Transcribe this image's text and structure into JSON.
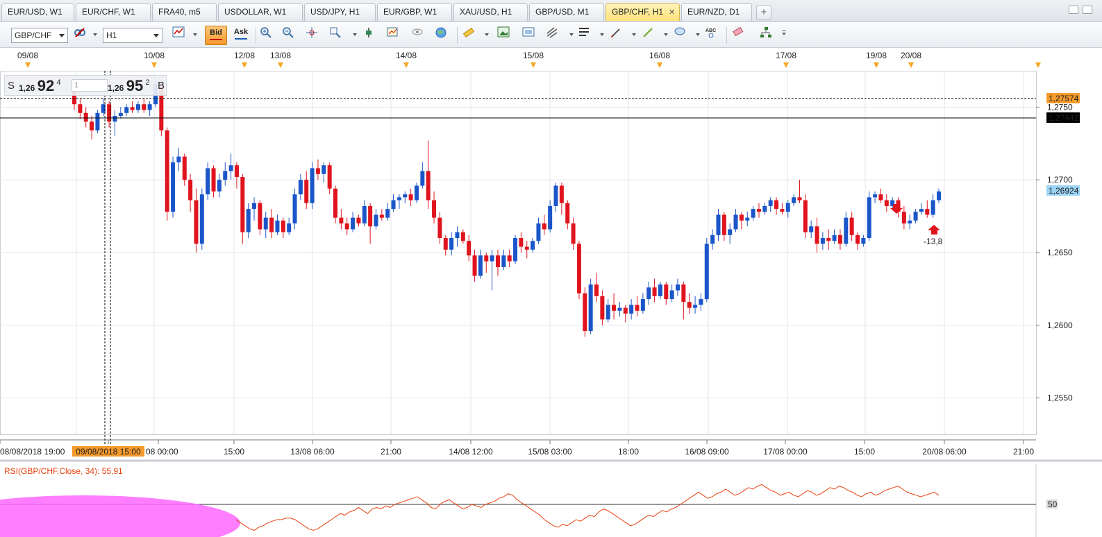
{
  "tabs": [
    {
      "label": "EUR/USD, W1",
      "active": false
    },
    {
      "label": "EUR/CHF, W1",
      "active": false
    },
    {
      "label": "FRA40, m5",
      "active": false
    },
    {
      "label": "USDOLLAR, W1",
      "active": false
    },
    {
      "label": "USD/JPY, H1",
      "active": false
    },
    {
      "label": "EUR/GBP, W1",
      "active": false
    },
    {
      "label": "XAU/USD, H1",
      "active": false
    },
    {
      "label": "GBP/USD, M1",
      "active": false
    },
    {
      "label": "GBP/CHF, H1",
      "active": true
    },
    {
      "label": "EUR/NZD, D1",
      "active": false
    }
  ],
  "toolbar": {
    "symbol": "GBP/CHF",
    "timeframe": "H1",
    "bid_label": "Bid",
    "ask_label": "Ask",
    "icons": [
      "chart-link-icon",
      "chart-type-icon",
      "zoom-in-icon",
      "zoom-out-icon",
      "crosshair-icon",
      "magnify-icon",
      "data-marker-icon",
      "indicator-icon",
      "eye-icon",
      "globe-icon",
      "ruler-icon",
      "image-icon",
      "screenshot-icon",
      "trendline-icon",
      "horizontal-lines-icon",
      "pen-icon",
      "line-draw-icon",
      "ellipse-icon",
      "text-tool-icon",
      "eraser-icon",
      "hierarchy-icon"
    ]
  },
  "trade_panel": {
    "sell_label": "S",
    "sell_small": "1,26",
    "sell_big": "92",
    "sell_sup": "4",
    "quantity": "1",
    "buy_small": "1,26",
    "buy_big": "95",
    "buy_sup": "2",
    "buy_label": "B"
  },
  "top_axis_dates": [
    "09/08",
    "10/08",
    "12/08",
    "13/08",
    "14/08",
    "15/08",
    "16/08",
    "17/08",
    "19/08",
    "20/08"
  ],
  "bottom_axis_labels": [
    "08/08/2018 19:00",
    "09/08/2018 15:00",
    "08 00:00",
    "15:00",
    "13/08 06:00",
    "21:00",
    "14/08 12:00",
    "15/08 03:00",
    "18:00",
    "16/08 09:00",
    "17/08 00:00",
    "15:00",
    "20/08 06:00",
    "21:00"
  ],
  "price_levels": [
    "1,2750",
    "1,2700",
    "1,2650",
    "1,2600",
    "1,2550"
  ],
  "price_tags": {
    "dashed_line": "1,27574",
    "solid_line": "1,27442",
    "current": "1,26924"
  },
  "annotation": "-13,8",
  "rsi": {
    "label": "RSI(GBP/CHF.Close, 34): 55,91",
    "level": "50"
  },
  "colors": {
    "bull": "#1a56c9",
    "bear": "#e0141e",
    "tag_orange": "#f59a2c",
    "tag_blue": "#9cd4f5",
    "rsi_line": "#e8400c",
    "rsi_fill": "#ff66ff"
  },
  "chart_data": {
    "type": "candlestick",
    "symbol": "GBP/CHF",
    "timeframe": "H1",
    "ylim": [
      1.2525,
      1.2775
    ],
    "candles": [
      [
        1.2764,
        1.2768,
        1.2748,
        1.2752
      ],
      [
        1.2752,
        1.2756,
        1.2742,
        1.2746
      ],
      [
        1.2746,
        1.275,
        1.2736,
        1.274
      ],
      [
        1.274,
        1.2744,
        1.2728,
        1.2734
      ],
      [
        1.2734,
        1.2748,
        1.2732,
        1.2746
      ],
      [
        1.2746,
        1.2756,
        1.2744,
        1.2752
      ],
      [
        1.2752,
        1.2754,
        1.2736,
        1.274
      ],
      [
        1.274,
        1.2748,
        1.273,
        1.2744
      ],
      [
        1.2744,
        1.275,
        1.2742,
        1.2746
      ],
      [
        1.2746,
        1.2752,
        1.2744,
        1.275
      ],
      [
        1.275,
        1.2754,
        1.2746,
        1.2748
      ],
      [
        1.2748,
        1.2754,
        1.2746,
        1.2752
      ],
      [
        1.2752,
        1.2756,
        1.2746,
        1.2748
      ],
      [
        1.2748,
        1.2754,
        1.2744,
        1.2752
      ],
      [
        1.2752,
        1.277,
        1.275,
        1.2766
      ],
      [
        1.2766,
        1.2768,
        1.273,
        1.2734
      ],
      [
        1.2734,
        1.2736,
        1.2672,
        1.2678
      ],
      [
        1.2678,
        1.2716,
        1.2674,
        1.2712
      ],
      [
        1.2712,
        1.2722,
        1.2706,
        1.2716
      ],
      [
        1.2716,
        1.2718,
        1.2696,
        1.27
      ],
      [
        1.27,
        1.2704,
        1.2678,
        1.2686
      ],
      [
        1.2686,
        1.2694,
        1.265,
        1.2656
      ],
      [
        1.2656,
        1.2694,
        1.2652,
        1.269
      ],
      [
        1.269,
        1.2712,
        1.2686,
        1.2708
      ],
      [
        1.2708,
        1.271,
        1.2688,
        1.2692
      ],
      [
        1.2692,
        1.2704,
        1.2688,
        1.27
      ],
      [
        1.27,
        1.2712,
        1.2696,
        1.2706
      ],
      [
        1.2706,
        1.2718,
        1.27,
        1.271
      ],
      [
        1.271,
        1.2712,
        1.2694,
        1.2702
      ],
      [
        1.2702,
        1.2704,
        1.2656,
        1.2664
      ],
      [
        1.2664,
        1.2684,
        1.266,
        1.268
      ],
      [
        1.268,
        1.2688,
        1.2672,
        1.2684
      ],
      [
        1.2684,
        1.2686,
        1.2662,
        1.2666
      ],
      [
        1.2666,
        1.2678,
        1.266,
        1.2674
      ],
      [
        1.2674,
        1.268,
        1.266,
        1.2664
      ],
      [
        1.2664,
        1.2676,
        1.2662,
        1.2672
      ],
      [
        1.2672,
        1.2674,
        1.266,
        1.2664
      ],
      [
        1.2664,
        1.2674,
        1.2662,
        1.267
      ],
      [
        1.267,
        1.2694,
        1.2666,
        1.269
      ],
      [
        1.269,
        1.2704,
        1.2686,
        1.27
      ],
      [
        1.27,
        1.2706,
        1.268,
        1.2684
      ],
      [
        1.2684,
        1.2712,
        1.268,
        1.2708
      ],
      [
        1.2708,
        1.2714,
        1.27,
        1.2704
      ],
      [
        1.2704,
        1.2712,
        1.2698,
        1.271
      ],
      [
        1.271,
        1.2712,
        1.269,
        1.2694
      ],
      [
        1.2694,
        1.2696,
        1.267,
        1.2674
      ],
      [
        1.2674,
        1.268,
        1.2666,
        1.267
      ],
      [
        1.267,
        1.2674,
        1.2662,
        1.2666
      ],
      [
        1.2666,
        1.2678,
        1.2664,
        1.2674
      ],
      [
        1.2674,
        1.2676,
        1.2668,
        1.267
      ],
      [
        1.267,
        1.2686,
        1.2668,
        1.2682
      ],
      [
        1.2682,
        1.2684,
        1.2656,
        1.2668
      ],
      [
        1.2668,
        1.268,
        1.2666,
        1.2676
      ],
      [
        1.2676,
        1.268,
        1.2672,
        1.2674
      ],
      [
        1.2674,
        1.2684,
        1.2672,
        1.268
      ],
      [
        1.268,
        1.269,
        1.2678,
        1.2686
      ],
      [
        1.2686,
        1.269,
        1.268,
        1.2688
      ],
      [
        1.2688,
        1.2692,
        1.2684,
        1.269
      ],
      [
        1.269,
        1.2694,
        1.2682,
        1.2686
      ],
      [
        1.2686,
        1.2698,
        1.2684,
        1.2696
      ],
      [
        1.2696,
        1.2712,
        1.2694,
        1.2706
      ],
      [
        1.2706,
        1.2727,
        1.268,
        1.2686
      ],
      [
        1.2686,
        1.2692,
        1.267,
        1.2674
      ],
      [
        1.2674,
        1.2678,
        1.2656,
        1.266
      ],
      [
        1.266,
        1.2662,
        1.2648,
        1.2652
      ],
      [
        1.2652,
        1.2664,
        1.2648,
        1.266
      ],
      [
        1.266,
        1.2668,
        1.2654,
        1.2664
      ],
      [
        1.2664,
        1.2666,
        1.2656,
        1.2658
      ],
      [
        1.2658,
        1.2662,
        1.2644,
        1.2648
      ],
      [
        1.2648,
        1.2652,
        1.263,
        1.2634
      ],
      [
        1.2634,
        1.2652,
        1.2632,
        1.2648
      ],
      [
        1.2648,
        1.265,
        1.2636,
        1.2644
      ],
      [
        1.2644,
        1.2652,
        1.2624,
        1.2648
      ],
      [
        1.2648,
        1.2652,
        1.2634,
        1.264
      ],
      [
        1.264,
        1.2652,
        1.2638,
        1.2648
      ],
      [
        1.2648,
        1.2652,
        1.264,
        1.2644
      ],
      [
        1.2644,
        1.2662,
        1.2642,
        1.266
      ],
      [
        1.266,
        1.2664,
        1.265,
        1.2654
      ],
      [
        1.2654,
        1.2658,
        1.2646,
        1.2652
      ],
      [
        1.2652,
        1.266,
        1.265,
        1.2658
      ],
      [
        1.2658,
        1.2674,
        1.2656,
        1.267
      ],
      [
        1.267,
        1.2676,
        1.2662,
        1.2666
      ],
      [
        1.2666,
        1.2686,
        1.2664,
        1.2682
      ],
      [
        1.2682,
        1.2698,
        1.2678,
        1.2696
      ],
      [
        1.2696,
        1.2698,
        1.2676,
        1.2684
      ],
      [
        1.2684,
        1.2686,
        1.2666,
        1.267
      ],
      [
        1.267,
        1.2674,
        1.2652,
        1.2656
      ],
      [
        1.2656,
        1.2658,
        1.2618,
        1.2622
      ],
      [
        1.2622,
        1.2626,
        1.2592,
        1.2596
      ],
      [
        1.2596,
        1.2632,
        1.2594,
        1.2628
      ],
      [
        1.2628,
        1.2636,
        1.2616,
        1.262
      ],
      [
        1.262,
        1.2624,
        1.26,
        1.2604
      ],
      [
        1.2604,
        1.2618,
        1.2602,
        1.2614
      ],
      [
        1.2614,
        1.2622,
        1.2604,
        1.261
      ],
      [
        1.261,
        1.2616,
        1.2606,
        1.2612
      ],
      [
        1.2612,
        1.2614,
        1.2602,
        1.2608
      ],
      [
        1.2608,
        1.2618,
        1.2604,
        1.2614
      ],
      [
        1.2614,
        1.262,
        1.2606,
        1.261
      ],
      [
        1.261,
        1.2622,
        1.2608,
        1.2618
      ],
      [
        1.2618,
        1.263,
        1.2614,
        1.2626
      ],
      [
        1.2626,
        1.2632,
        1.2616,
        1.262
      ],
      [
        1.262,
        1.263,
        1.2618,
        1.2628
      ],
      [
        1.2628,
        1.263,
        1.2614,
        1.2618
      ],
      [
        1.2618,
        1.2628,
        1.2616,
        1.2624
      ],
      [
        1.2624,
        1.2632,
        1.262,
        1.2628
      ],
      [
        1.2628,
        1.263,
        1.2604,
        1.2616
      ],
      [
        1.2616,
        1.2622,
        1.2608,
        1.2612
      ],
      [
        1.2612,
        1.262,
        1.2608,
        1.2614
      ],
      [
        1.2614,
        1.2622,
        1.261,
        1.2618
      ],
      [
        1.2618,
        1.266,
        1.2616,
        1.2656
      ],
      [
        1.2656,
        1.2666,
        1.2652,
        1.2662
      ],
      [
        1.2662,
        1.268,
        1.2658,
        1.2676
      ],
      [
        1.2676,
        1.2678,
        1.2658,
        1.2662
      ],
      [
        1.2662,
        1.267,
        1.2656,
        1.2666
      ],
      [
        1.2666,
        1.268,
        1.2664,
        1.2676
      ],
      [
        1.2676,
        1.2678,
        1.2666,
        1.2672
      ],
      [
        1.2672,
        1.2678,
        1.2668,
        1.2674
      ],
      [
        1.2674,
        1.2682,
        1.2672,
        1.268
      ],
      [
        1.268,
        1.2684,
        1.2674,
        1.2678
      ],
      [
        1.2678,
        1.2684,
        1.2676,
        1.2682
      ],
      [
        1.2682,
        1.2688,
        1.2678,
        1.2686
      ],
      [
        1.2686,
        1.2688,
        1.2676,
        1.268
      ],
      [
        1.268,
        1.2684,
        1.2676,
        1.2678
      ],
      [
        1.2678,
        1.2686,
        1.2674,
        1.2684
      ],
      [
        1.2684,
        1.269,
        1.2682,
        1.2688
      ],
      [
        1.2688,
        1.27,
        1.2684,
        1.2686
      ],
      [
        1.2686,
        1.269,
        1.266,
        1.2664
      ],
      [
        1.2664,
        1.2672,
        1.266,
        1.2668
      ],
      [
        1.2668,
        1.2674,
        1.265,
        1.2656
      ],
      [
        1.2656,
        1.2664,
        1.2652,
        1.266
      ],
      [
        1.266,
        1.2666,
        1.2652,
        1.2658
      ],
      [
        1.2658,
        1.2666,
        1.2656,
        1.2662
      ],
      [
        1.2662,
        1.2666,
        1.2652,
        1.2656
      ],
      [
        1.2656,
        1.2678,
        1.2654,
        1.2674
      ],
      [
        1.2674,
        1.2678,
        1.2658,
        1.2662
      ],
      [
        1.2662,
        1.2664,
        1.2652,
        1.2656
      ],
      [
        1.2656,
        1.2662,
        1.2654,
        1.266
      ],
      [
        1.266,
        1.2692,
        1.2658,
        1.2688
      ],
      [
        1.2688,
        1.2692,
        1.2684,
        1.269
      ],
      [
        1.269,
        1.2694,
        1.2684,
        1.2686
      ],
      [
        1.2686,
        1.269,
        1.2678,
        1.2682
      ],
      [
        1.2682,
        1.2688,
        1.268,
        1.2686
      ],
      [
        1.2686,
        1.2688,
        1.2674,
        1.2678
      ],
      [
        1.2678,
        1.2682,
        1.2666,
        1.267
      ],
      [
        1.267,
        1.2676,
        1.2666,
        1.2672
      ],
      [
        1.2672,
        1.268,
        1.267,
        1.2678
      ],
      [
        1.2678,
        1.2684,
        1.2676,
        1.268
      ],
      [
        1.268,
        1.2686,
        1.2674,
        1.2676
      ],
      [
        1.2676,
        1.269,
        1.2674,
        1.2686
      ],
      [
        1.2686,
        1.2694,
        1.2684,
        1.2692
      ]
    ],
    "rsi_values": [
      40,
      38,
      36,
      34,
      33,
      35,
      36,
      38,
      39,
      40,
      40,
      41,
      41,
      40,
      38,
      36,
      34,
      33,
      34,
      36,
      38,
      40,
      42,
      44,
      43,
      45,
      46,
      48,
      46,
      44,
      47,
      48,
      47,
      49,
      48,
      50,
      51,
      52,
      53,
      54,
      55,
      53,
      51,
      48,
      47,
      50,
      52,
      53,
      51,
      49,
      47,
      48,
      50,
      49,
      48,
      50,
      51,
      52,
      54,
      55,
      57,
      56,
      53,
      51,
      49,
      47,
      45,
      43,
      40,
      38,
      36,
      35,
      37,
      36,
      38,
      40,
      39,
      41,
      43,
      42,
      45,
      47,
      46,
      44,
      42,
      40,
      38,
      36,
      37,
      39,
      41,
      43,
      42,
      44,
      46,
      45,
      47,
      48,
      50,
      52,
      54,
      56,
      58,
      56,
      54,
      55,
      57,
      58,
      60,
      58,
      56,
      57,
      59,
      61,
      60,
      62,
      63,
      61,
      59,
      58,
      56,
      57,
      58,
      56,
      55,
      57,
      59,
      58,
      56,
      57,
      59,
      61,
      60,
      62,
      61,
      59,
      58,
      56,
      55,
      57,
      58,
      56,
      57,
      59,
      60,
      61,
      62,
      60,
      58,
      57,
      56,
      55,
      56,
      57,
      58,
      56
    ]
  }
}
